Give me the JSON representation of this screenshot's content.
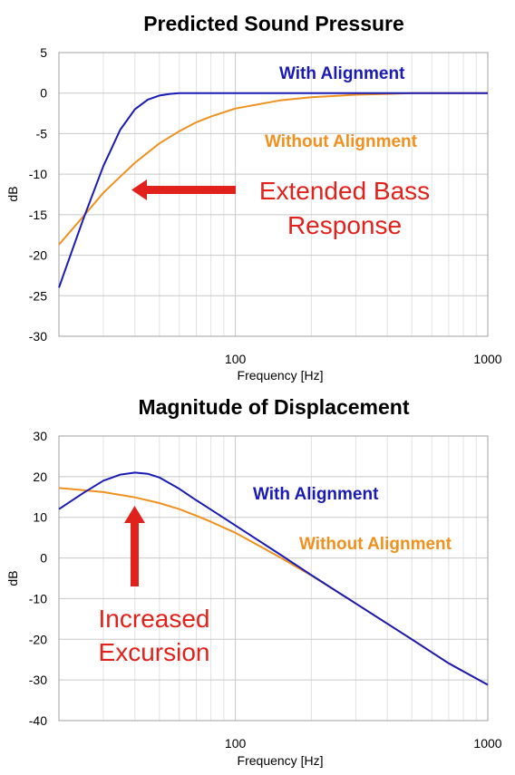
{
  "chart_data": [
    {
      "type": "line",
      "title": "Predicted Sound Pressure",
      "xlabel": "Frequency [Hz]",
      "ylabel": "dB",
      "xscale": "log",
      "xlim": [
        20,
        1000
      ],
      "ylim": [
        -30,
        5
      ],
      "xticks": [
        {
          "value": 100,
          "label": "100"
        },
        {
          "value": 1000,
          "label": "1000"
        }
      ],
      "yticks": [
        {
          "value": 5,
          "label": "5"
        },
        {
          "value": 0,
          "label": "0"
        },
        {
          "value": -5,
          "label": "-5"
        },
        {
          "value": -10,
          "label": "-10"
        },
        {
          "value": -15,
          "label": "-15"
        },
        {
          "value": -20,
          "label": "-20"
        },
        {
          "value": -25,
          "label": "-25"
        },
        {
          "value": -30,
          "label": "-30"
        }
      ],
      "grid": true,
      "series": [
        {
          "name": "With Alignment",
          "color": "#1a1ab4",
          "x": [
            20,
            25,
            30,
            35,
            40,
            45,
            50,
            55,
            60,
            70,
            80,
            100,
            150,
            200,
            300,
            500,
            1000
          ],
          "y": [
            -24,
            -15.5,
            -9,
            -4.5,
            -2,
            -0.8,
            -0.3,
            -0.1,
            0,
            0,
            0,
            0,
            0,
            0,
            0,
            0,
            0
          ]
        },
        {
          "name": "Without Alignment",
          "color": "#f0901e",
          "x": [
            20,
            25,
            30,
            35,
            40,
            50,
            60,
            70,
            80,
            100,
            150,
            200,
            300,
            400,
            500,
            700,
            1000
          ],
          "y": [
            -18.7,
            -15.2,
            -12.3,
            -10.3,
            -8.6,
            -6.2,
            -4.7,
            -3.6,
            -2.9,
            -1.9,
            -0.9,
            -0.5,
            -0.2,
            -0.1,
            0,
            0,
            0
          ]
        }
      ],
      "annotations": [
        {
          "text_lines": [
            "Extended Bass",
            "Response"
          ],
          "color": "#e0211c"
        }
      ]
    },
    {
      "type": "line",
      "title": "Magnitude of Displacement",
      "xlabel": "Frequency [Hz]",
      "ylabel": "dB",
      "xscale": "log",
      "xlim": [
        20,
        1000
      ],
      "ylim": [
        -40,
        30
      ],
      "xticks": [
        {
          "value": 100,
          "label": "100"
        },
        {
          "value": 1000,
          "label": "1000"
        }
      ],
      "yticks": [
        {
          "value": 30,
          "label": "30"
        },
        {
          "value": 20,
          "label": "20"
        },
        {
          "value": 10,
          "label": "10"
        },
        {
          "value": 0,
          "label": "0"
        },
        {
          "value": -10,
          "label": "-10"
        },
        {
          "value": -20,
          "label": "-20"
        },
        {
          "value": -30,
          "label": "-30"
        },
        {
          "value": -40,
          "label": "-40"
        }
      ],
      "grid": true,
      "series": [
        {
          "name": "With Alignment",
          "color": "#1a1ab4",
          "x": [
            20,
            25,
            30,
            35,
            40,
            45,
            50,
            60,
            70,
            80,
            100,
            150,
            200,
            300,
            500,
            700,
            1000
          ],
          "y": [
            12,
            16,
            19,
            20.5,
            21,
            20.7,
            19.8,
            17,
            14.2,
            11.9,
            8,
            0.9,
            -4.2,
            -11.2,
            -20,
            -25.9,
            -31.2
          ]
        },
        {
          "name": "Without Alignment",
          "color": "#f0901e",
          "x": [
            20,
            25,
            30,
            35,
            40,
            50,
            60,
            70,
            80,
            100,
            150,
            200,
            300,
            500,
            700,
            1000
          ],
          "y": [
            17.2,
            16.7,
            16.2,
            15.5,
            14.9,
            13.5,
            12,
            10.4,
            8.9,
            6.2,
            0.2,
            -4.3,
            -11.2,
            -20,
            -25.9,
            -31.2
          ]
        }
      ],
      "annotations": [
        {
          "text_lines": [
            "Increased",
            "Excursion"
          ],
          "color": "#e0211c"
        }
      ]
    }
  ]
}
